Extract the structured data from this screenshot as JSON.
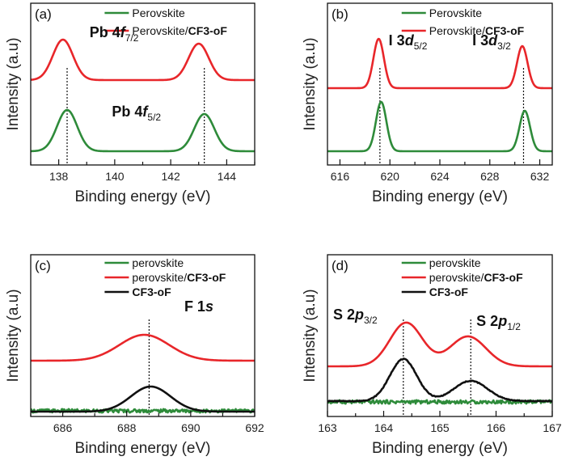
{
  "chart_data": [
    {
      "type": "line",
      "panel_label": "(a)",
      "xlabel": "Binding energy (eV)",
      "ylabel": "Intensity (a.u)",
      "xlim": [
        137,
        145
      ],
      "ylim": [
        0,
        10
      ],
      "x_ticks": [
        "138",
        "140",
        "142",
        "144"
      ],
      "legend": [
        "Perovskite",
        "Perovskite/CF3-oF"
      ],
      "annotations": [
        {
          "text": "Pb 4f",
          "sub": "7/2",
          "x": 139.1,
          "y": 7.9
        },
        {
          "text": "Pb 4f",
          "sub": "5/2",
          "x": 139.9,
          "y": 3.0
        }
      ],
      "reference_lines": [
        138.3,
        143.2
      ],
      "series": [
        {
          "name": "Perovskite",
          "color": "#2e8b3a",
          "offset": 0.85,
          "peaks": [
            {
              "center": 138.3,
              "height": 2.55,
              "width": 0.36
            },
            {
              "center": 143.2,
              "height": 2.3,
              "width": 0.36
            }
          ]
        },
        {
          "name": "Perovskite/CF3-oF",
          "color": "#e8262a",
          "offset": 5.25,
          "peaks": [
            {
              "center": 138.15,
              "height": 2.5,
              "width": 0.36
            },
            {
              "center": 143.0,
              "height": 2.25,
              "width": 0.36
            }
          ]
        }
      ]
    },
    {
      "type": "line",
      "panel_label": "(b)",
      "xlabel": "Binding energy (eV)",
      "ylabel": "Intensity (a.u)",
      "xlim": [
        615,
        633
      ],
      "ylim": [
        0,
        10
      ],
      "x_ticks": [
        "616",
        "620",
        "624",
        "628",
        "632"
      ],
      "legend": [
        "Perovskite",
        "Perovskite/CF3-oF"
      ],
      "annotations": [
        {
          "text": "I 3d",
          "sub": "5/2",
          "x": 619.9,
          "y": 7.4
        },
        {
          "text": "I 3d",
          "sub": "3/2",
          "x": 626.6,
          "y": 7.4
        }
      ],
      "reference_lines": [
        619.2,
        630.7
      ],
      "series": [
        {
          "name": "Perovskite",
          "color": "#2e8b3a",
          "offset": 0.85,
          "peaks": [
            {
              "center": 619.3,
              "height": 3.05,
              "width": 0.42
            },
            {
              "center": 630.8,
              "height": 2.5,
              "width": 0.42
            }
          ]
        },
        {
          "name": "Perovskite/CF3-oF",
          "color": "#e8262a",
          "offset": 4.75,
          "peaks": [
            {
              "center": 619.1,
              "height": 3.05,
              "width": 0.42
            },
            {
              "center": 630.6,
              "height": 2.6,
              "width": 0.42
            }
          ]
        }
      ]
    },
    {
      "type": "line",
      "panel_label": "(c)",
      "xlabel": "Binding energy (eV)",
      "ylabel": "Intensity (a.u)",
      "xlim": [
        685,
        692
      ],
      "ylim": [
        0,
        10
      ],
      "x_ticks": [
        "686",
        "688",
        "690",
        "692"
      ],
      "legend": [
        "perovskite",
        "perovskite/CF3-oF",
        "CF3-oF"
      ],
      "annotations": [
        {
          "text": "F 1s",
          "sub": "",
          "x": 689.8,
          "y": 6.5
        }
      ],
      "reference_lines": [
        688.7
      ],
      "series": [
        {
          "name": "perovskite",
          "color": "#2e8b3a",
          "offset": 0.35,
          "peaks": []
        },
        {
          "name": "perovskite/CF3-oF",
          "color": "#e8262a",
          "offset": 3.45,
          "peaks": [
            {
              "center": 688.55,
              "height": 1.6,
              "width": 0.78
            }
          ]
        },
        {
          "name": "CF3-oF",
          "color": "#111111",
          "offset": 0.3,
          "peaks": [
            {
              "center": 688.75,
              "height": 1.55,
              "width": 0.62
            }
          ]
        }
      ]
    },
    {
      "type": "line",
      "panel_label": "(d)",
      "xlabel": "Binding energy (eV)",
      "ylabel": "Intensity (a.u)",
      "xlim": [
        163,
        167
      ],
      "ylim": [
        0,
        10
      ],
      "x_ticks": [
        "163",
        "164",
        "165",
        "166",
        "167"
      ],
      "legend": [
        "perovskite",
        "perovskite/CF3-oF",
        "CF3-oF"
      ],
      "annotations": [
        {
          "text": "S 2p",
          "sub": "3/2",
          "x": 163.1,
          "y": 6.0
        },
        {
          "text": "S 2p",
          "sub": "1/2",
          "x": 165.65,
          "y": 5.6
        }
      ],
      "reference_lines": [
        164.35,
        165.55
      ],
      "series": [
        {
          "name": "perovskite",
          "color": "#2e8b3a",
          "offset": 0.9,
          "peaks": []
        },
        {
          "name": "perovskite/CF3-oF",
          "color": "#e8262a",
          "offset": 3.1,
          "peaks": [
            {
              "center": 164.4,
              "height": 2.7,
              "width": 0.29
            },
            {
              "center": 165.5,
              "height": 1.85,
              "width": 0.32
            }
          ]
        },
        {
          "name": "CF3-oF",
          "color": "#111111",
          "offset": 0.95,
          "peaks": [
            {
              "center": 164.35,
              "height": 2.6,
              "width": 0.24
            },
            {
              "center": 165.55,
              "height": 1.25,
              "width": 0.3
            }
          ]
        }
      ]
    }
  ]
}
